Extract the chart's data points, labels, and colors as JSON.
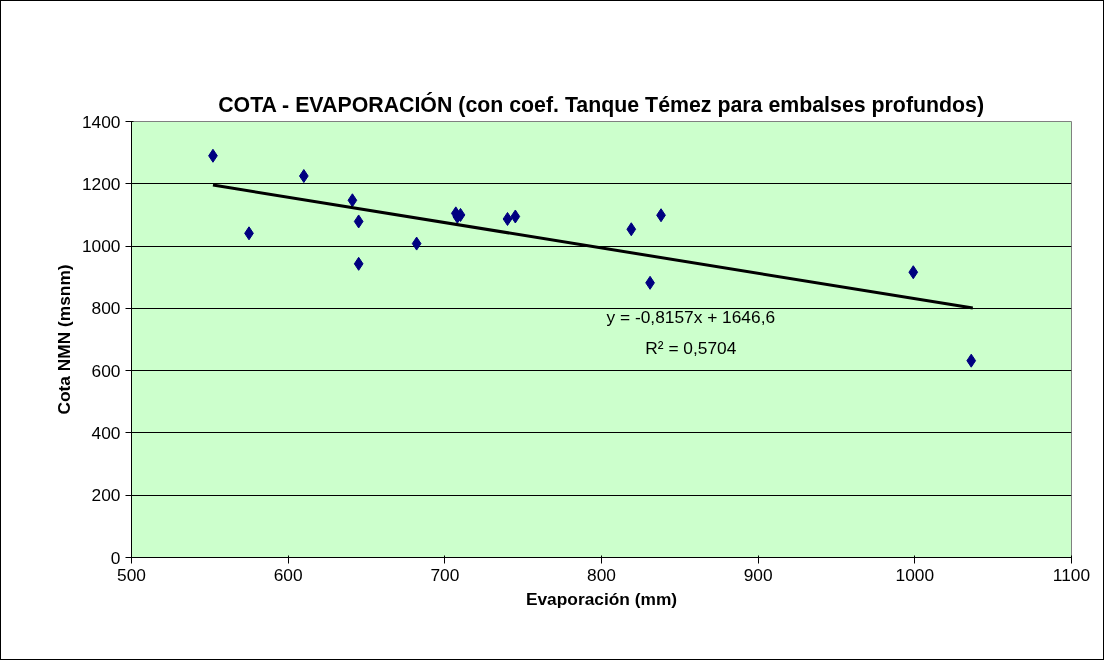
{
  "chart_data": {
    "type": "scatter",
    "title": "COTA - EVAPORACIÓN (con coef. Tanque Témez para embalses profundos)",
    "xlabel": "Evaporación (mm)",
    "ylabel": "Cota NMN (msnm)",
    "xlim": [
      500,
      1100
    ],
    "xticks": [
      500,
      600,
      700,
      800,
      900,
      1000,
      1100
    ],
    "ylim": [
      0,
      1400
    ],
    "yticks": [
      0,
      200,
      400,
      600,
      800,
      1000,
      1200,
      1400
    ],
    "grid": "y",
    "marker": "diamond",
    "series": [
      {
        "color": "#000080",
        "x": [
          552,
          575,
          610,
          641,
          645,
          645,
          682,
          707,
          708,
          710,
          740,
          745,
          819,
          831,
          838,
          999,
          1036
        ],
        "values": [
          1290,
          1041,
          1225,
          1147,
          1079,
          943,
          1008,
          1105,
          1094,
          1100,
          1087,
          1095,
          1054,
          882,
          1099,
          916,
          632
        ]
      },
      {
        "type": "line",
        "marker": "none",
        "color": "#000000",
        "x": [
          552,
          1037
        ],
        "values": [
          1196,
          801
        ]
      }
    ],
    "annotations": [
      "y = -0,8157x + 1646,6",
      "R² = 0,5704"
    ]
  }
}
